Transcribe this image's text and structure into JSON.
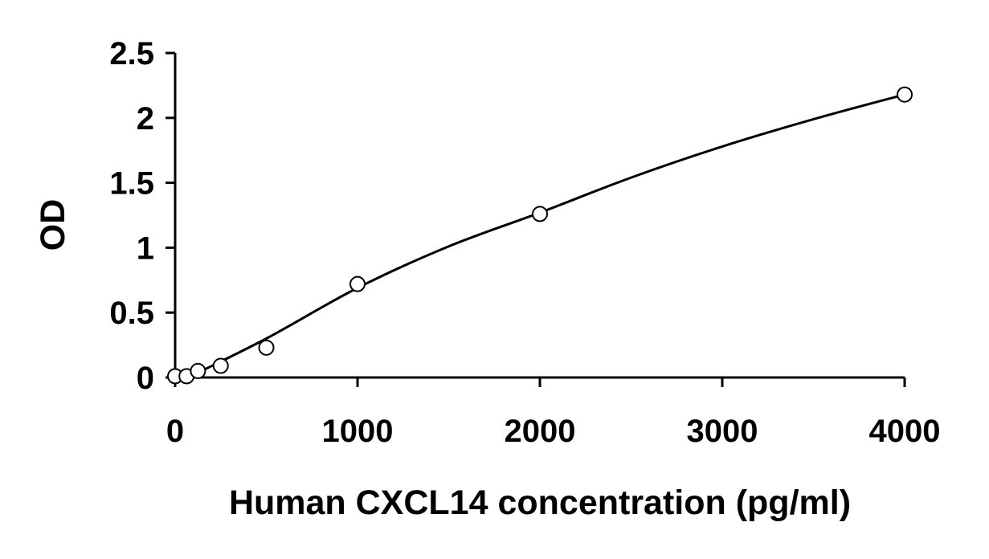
{
  "chart_data": {
    "type": "scatter",
    "title": "",
    "xlabel": "Human CXCL14 concentration (pg/ml)",
    "ylabel": "OD",
    "xlim": [
      0,
      4000
    ],
    "ylim": [
      0,
      2.5
    ],
    "x_ticks": [
      0,
      1000,
      2000,
      3000,
      4000
    ],
    "x_tick_labels": [
      "0",
      "1000",
      "2000",
      "3000",
      "4000"
    ],
    "y_ticks": [
      0,
      0.5,
      1,
      1.5,
      2,
      2.5
    ],
    "y_tick_labels": [
      "0",
      "0.5",
      "1",
      "1.5",
      "2",
      "2.5"
    ],
    "grid": false,
    "series": [
      {
        "marker": "open-circle",
        "x": [
          0,
          62.5,
          125,
          250,
          500,
          1000,
          2000,
          4000
        ],
        "y": [
          0.01,
          0.01,
          0.05,
          0.09,
          0.23,
          0.72,
          1.26,
          2.18
        ]
      }
    ],
    "fit_curve": {
      "style": "smooth-line",
      "x": [
        100,
        500,
        1000,
        1500,
        2000,
        2500,
        3000,
        3500,
        4000
      ],
      "y": [
        0.02,
        0.3,
        0.69,
        1.01,
        1.27,
        1.54,
        1.78,
        1.99,
        2.18
      ]
    }
  }
}
